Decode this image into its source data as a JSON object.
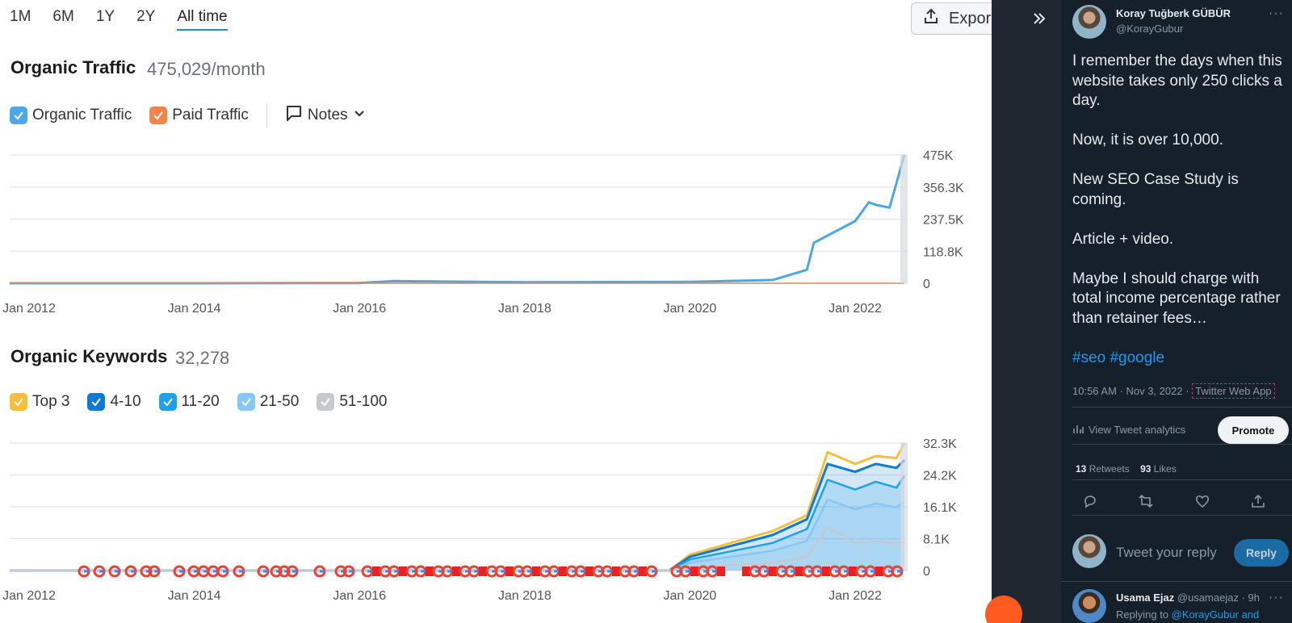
{
  "range_tabs": [
    "1M",
    "6M",
    "1Y",
    "2Y",
    "All time"
  ],
  "active_range": "All time",
  "export_label": "Expor",
  "traffic": {
    "title": "Organic Traffic",
    "value": "475,029/month",
    "legend": {
      "organic": "Organic Traffic",
      "paid": "Paid Traffic",
      "notes": "Notes"
    }
  },
  "keywords": {
    "title": "Organic Keywords",
    "value": "32,278",
    "legend": [
      "Top 3",
      "4-10",
      "11-20",
      "21-50",
      "51-100"
    ]
  },
  "colors": {
    "organic": "#4aa7e8",
    "paid": "#f4844c",
    "top3": "#f5bf3e",
    "k4_10": "#0f7ad4",
    "k11_20": "#1ea0ef",
    "k21_50": "#85c8f5",
    "k51_100": "#c5c9cf"
  },
  "chart_data": [
    {
      "type": "line",
      "title": "Organic Traffic",
      "x": [
        "Jan 2012",
        "Jan 2014",
        "Jan 2016",
        "Jun 2016",
        "Jan 2018",
        "Jan 2020",
        "Jan 2021",
        "Jun 2021",
        "Jul 2021",
        "Jan 2022",
        "Mar 2022",
        "Apr 2022",
        "Jun 2022",
        "Oct 2022"
      ],
      "series": [
        {
          "name": "Organic Traffic",
          "values": [
            0,
            0,
            1000,
            8000,
            4000,
            5000,
            12000,
            50000,
            150000,
            230000,
            300000,
            290000,
            280000,
            475000
          ]
        },
        {
          "name": "Paid Traffic",
          "values": [
            0,
            0,
            0,
            0,
            0,
            0,
            0,
            0,
            0,
            0,
            0,
            0,
            0,
            0
          ]
        }
      ],
      "x_ticks": [
        "Jan 2012",
        "Jan 2014",
        "Jan 2016",
        "Jan 2018",
        "Jan 2020",
        "Jan 2022"
      ],
      "y_ticks": [
        "475K",
        "356.3K",
        "237.5K",
        "118.8K",
        "0"
      ],
      "ylim": [
        0,
        475000
      ]
    },
    {
      "type": "area",
      "title": "Organic Keywords",
      "x": [
        "Jan 2012",
        "Oct 2019",
        "Jan 2020",
        "Jan 2021",
        "Jun 2021",
        "Sep 2021",
        "Jan 2022",
        "Apr 2022",
        "Jul 2022",
        "Oct 2022"
      ],
      "series": [
        {
          "name": "Top 3",
          "values": [
            0,
            0,
            4000,
            10000,
            14000,
            30000,
            27000,
            29000,
            28500,
            32300
          ]
        },
        {
          "name": "4-10",
          "values": [
            0,
            0,
            3500,
            9000,
            13000,
            27000,
            25000,
            27000,
            26000,
            28000
          ]
        },
        {
          "name": "11-20",
          "values": [
            0,
            0,
            2800,
            7000,
            10500,
            23000,
            20500,
            22500,
            21000,
            24000
          ]
        },
        {
          "name": "21-50",
          "values": [
            0,
            0,
            2000,
            5000,
            7500,
            18000,
            15500,
            17000,
            16000,
            17500
          ]
        },
        {
          "name": "51-100",
          "values": [
            0,
            0,
            800,
            2000,
            3500,
            11000,
            7000,
            7500,
            6800,
            7000
          ]
        }
      ],
      "x_ticks": [
        "Jan 2012",
        "Jan 2014",
        "Jan 2016",
        "Jan 2018",
        "Jan 2020",
        "Jan 2022"
      ],
      "y_ticks": [
        "32.3K",
        "24.2K",
        "16.1K",
        "8.1K",
        "0"
      ],
      "ylim": [
        0,
        32300
      ]
    }
  ],
  "tweet": {
    "author": "Koray Tuğberk GÜBÜR",
    "handle": "@KorayGubur",
    "lines": [
      "I remember the days when this website takes only 250 clicks a day.",
      "Now, it is over 10,000.",
      "New SEO Case Study is coming.",
      "Article + video.",
      "Maybe I should charge with total income percentage rather than retainer fees…"
    ],
    "hashtags": "#seo #google",
    "time": "10:56 AM · Nov 3, 2022 · ",
    "source": "Twitter Web App",
    "analytics": "View Tweet analytics",
    "promote": "Promote",
    "retweets": "13",
    "retweets_label": "Retweets",
    "likes": "93",
    "likes_label": "Likes",
    "reply_placeholder": "Tweet your reply",
    "reply_button": "Reply"
  },
  "reply": {
    "author": "Usama Ejaz",
    "meta": "@usamaejaz · 9h",
    "replying_prefix": "Replying to ",
    "replying_to": "@KorayGubur and"
  }
}
